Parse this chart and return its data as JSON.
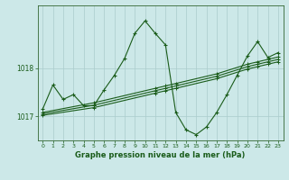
{
  "title": "Graphe pression niveau de la mer (hPa)",
  "background_color": "#cce8e8",
  "plot_bg_color": "#cce8e8",
  "line_color": "#1a5c1a",
  "grid_color": "#aacccc",
  "axis_color": "#336633",
  "text_color": "#1a5c1a",
  "xlim": [
    -0.5,
    23.5
  ],
  "ylim": [
    1016.5,
    1019.3
  ],
  "yticks": [
    1017,
    1018
  ],
  "xticks": [
    0,
    1,
    2,
    3,
    4,
    5,
    6,
    7,
    8,
    9,
    10,
    11,
    12,
    13,
    14,
    15,
    16,
    17,
    18,
    19,
    20,
    21,
    22,
    23
  ],
  "series1_x": [
    0,
    1,
    2,
    3,
    4,
    5,
    6,
    7,
    8,
    9,
    10,
    11,
    12,
    13,
    14,
    15,
    16,
    17,
    18,
    19,
    20,
    21,
    22,
    23
  ],
  "series1_y": [
    1017.15,
    1017.65,
    1017.35,
    1017.45,
    1017.22,
    1017.22,
    1017.55,
    1017.85,
    1018.2,
    1018.72,
    1018.98,
    1018.72,
    1018.48,
    1017.08,
    1016.72,
    1016.62,
    1016.78,
    1017.08,
    1017.45,
    1017.85,
    1018.25,
    1018.55,
    1018.22,
    1018.32
  ],
  "series2_x": [
    0,
    5,
    11,
    12,
    13,
    17,
    20,
    21,
    22,
    23
  ],
  "series2_y": [
    1017.08,
    1017.28,
    1017.58,
    1017.63,
    1017.68,
    1017.88,
    1018.08,
    1018.13,
    1018.18,
    1018.23
  ],
  "series3_x": [
    0,
    5,
    11,
    12,
    13,
    17,
    20,
    21,
    22,
    23
  ],
  "series3_y": [
    1017.05,
    1017.23,
    1017.53,
    1017.58,
    1017.63,
    1017.83,
    1018.03,
    1018.08,
    1018.13,
    1018.18
  ],
  "series4_x": [
    0,
    5,
    11,
    12,
    13,
    17,
    20,
    21,
    22,
    23
  ],
  "series4_y": [
    1017.02,
    1017.18,
    1017.48,
    1017.53,
    1017.58,
    1017.78,
    1017.98,
    1018.03,
    1018.08,
    1018.13
  ]
}
